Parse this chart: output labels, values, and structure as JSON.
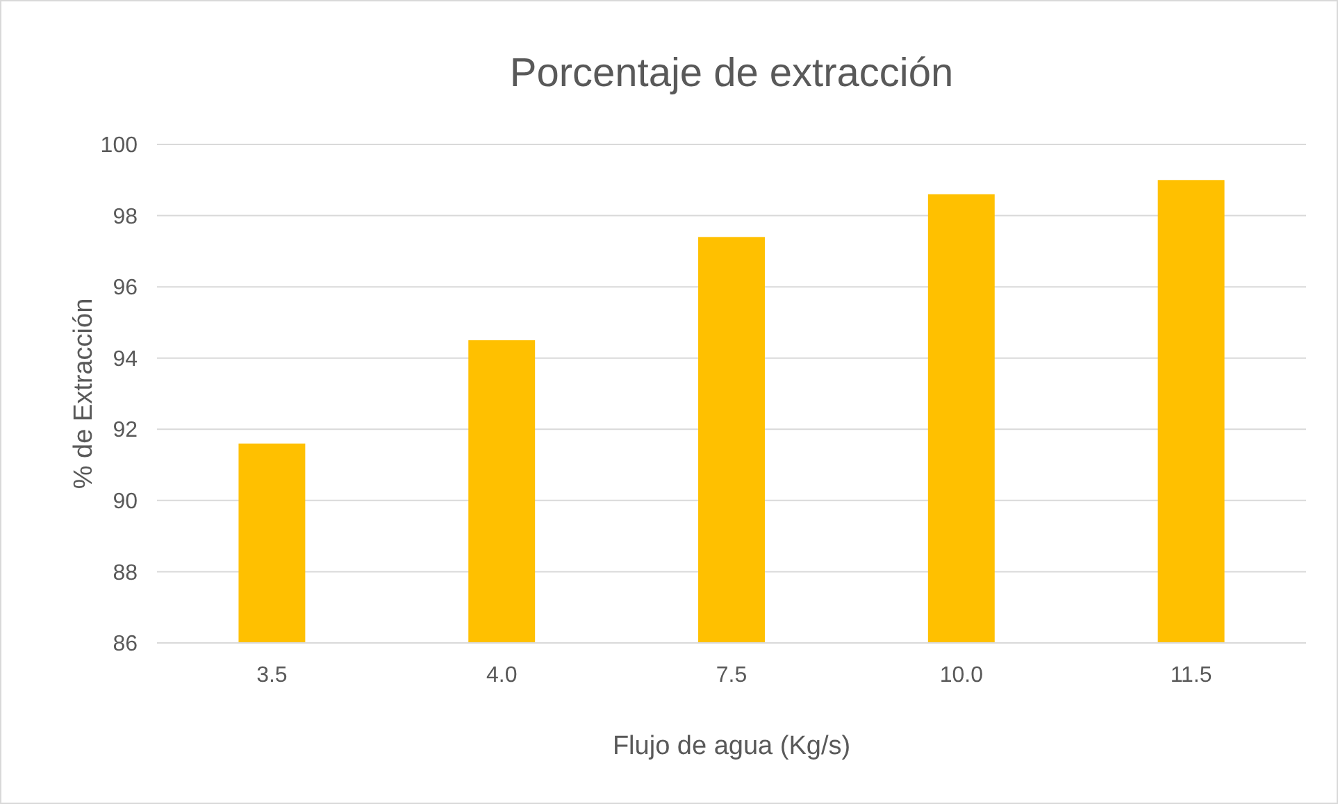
{
  "chart_data": {
    "type": "bar",
    "title": "Porcentaje de extracción",
    "xlabel": "Flujo de agua (Kg/s)",
    "ylabel": "% de Extracción",
    "categories": [
      "3.5",
      "4.0",
      "7.5",
      "10.0",
      "11.5"
    ],
    "values": [
      91.6,
      94.5,
      97.4,
      98.6,
      99.0
    ],
    "color": "#ffc000",
    "ylim": [
      86,
      100
    ],
    "yticks": [
      86,
      88,
      90,
      92,
      94,
      96,
      98,
      100
    ],
    "grid": "y"
  }
}
